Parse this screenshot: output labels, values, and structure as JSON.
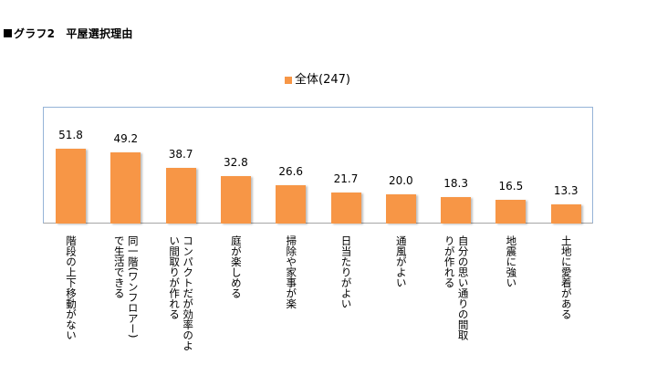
{
  "title": "グラフ2　平屋選択理由",
  "legend": {
    "label": "全体(247)",
    "color": "#f79646"
  },
  "chart_data": {
    "type": "bar",
    "title": "グラフ2　平屋選択理由",
    "xlabel": "",
    "ylabel": "",
    "legend": [
      "全体(247)"
    ],
    "legend_position": "top",
    "grid": false,
    "ylim": [
      0,
      80
    ],
    "categories": [
      "階段の上下移動がない",
      "同一階(ワンフロアー)で生活できる",
      "コンパクトだが効率のよい間取りが作れる",
      "庭が楽しめる",
      "掃除や家事が楽",
      "日当たりがよい",
      "通風がよい",
      "自分の思い通りの間取りが作れる",
      "地震に強い",
      "土地に愛着がある"
    ],
    "series": [
      {
        "name": "全体(247)",
        "values": [
          51.8,
          49.2,
          38.7,
          32.8,
          26.6,
          21.7,
          20.0,
          18.3,
          16.5,
          13.3
        ],
        "color": "#f79646"
      }
    ]
  },
  "labels": {
    "values": [
      "51.8",
      "49.2",
      "38.7",
      "32.8",
      "26.6",
      "21.7",
      "20.0",
      "18.3",
      "16.5",
      "13.3"
    ],
    "categories_display": [
      "階段の上下移動がない",
      "同一階(ワンフロアー)\nで生活できる",
      "コンパクトだが効率のよ\nい間取りが作れる",
      "庭が楽しめる",
      "掃除や家事が楽",
      "日当たりがよい",
      "通風がよい",
      "自分の思い通りの間取\nりが作れる",
      "地震に強い",
      "土地に愛着がある"
    ]
  }
}
